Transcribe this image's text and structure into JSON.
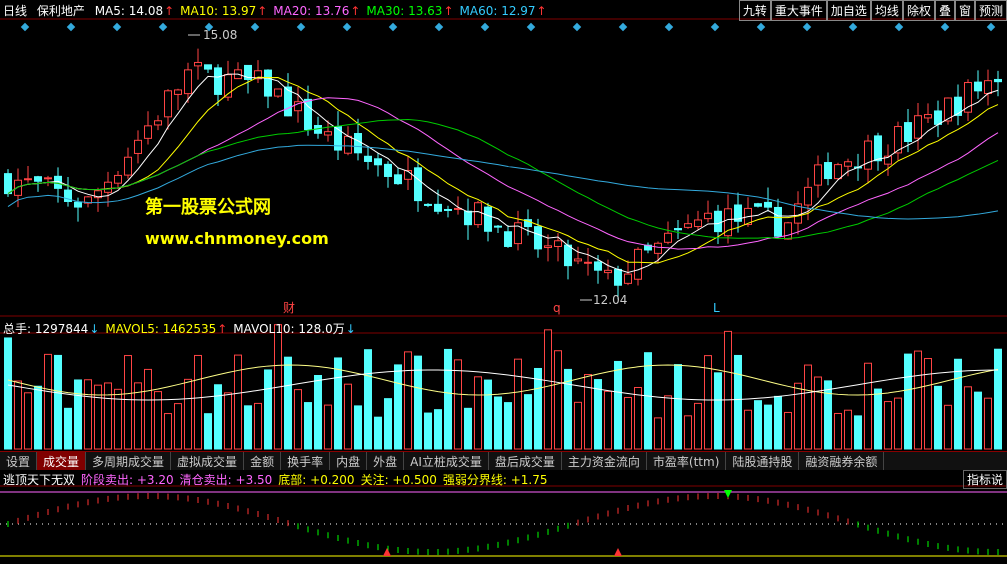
{
  "header": {
    "period": "日线",
    "stock": "保利地产",
    "indicators": [
      {
        "text": "MA5: 14.08",
        "arrow": "↑",
        "color": "#ffffff"
      },
      {
        "text": "MA10: 13.97",
        "arrow": "↑",
        "color": "#ffff00"
      },
      {
        "text": "MA20: 13.76",
        "arrow": "↑",
        "color": "#ff66ff"
      },
      {
        "text": "MA30: 13.63",
        "arrow": "↑",
        "color": "#00ff00"
      },
      {
        "text": "MA60: 12.97",
        "arrow": "↑",
        "color": "#33ccff"
      }
    ],
    "buttons": [
      "九转",
      "重大事件",
      "加自选",
      "均线",
      "除权",
      "叠",
      "窗",
      "预测"
    ]
  },
  "annotations": {
    "high": "15.08",
    "low": "12.04",
    "cai": "财",
    "q": "q",
    "l": "L"
  },
  "watermark": {
    "name": "第一股票公式网",
    "url": "www.chnmoney.com"
  },
  "volume_header": [
    {
      "text": "总手: 1297844",
      "arrow": "↓",
      "color": "#ffffff"
    },
    {
      "text": "MAVOL5: 1462535",
      "arrow": "↑",
      "color": "#ffff00"
    },
    {
      "text": "MAVOL10: 128.0万",
      "arrow": "↓",
      "color": "#ffffff"
    }
  ],
  "tabs": [
    "设置",
    "成交量",
    "多周期成交量",
    "虚拟成交量",
    "金额",
    "换手率",
    "内盘",
    "外盘",
    "AI立桩成交量",
    "盘后成交量",
    "主力资金流向",
    "市盈率(ttm)",
    "陆股通持股",
    "融资融券余额"
  ],
  "indicator_header": [
    {
      "text": "逃顶天下无双",
      "color": "#ffffff"
    },
    {
      "text": "阶段卖出: +3.20",
      "color": "#ff66ff"
    },
    {
      "text": "清仓卖出: +3.50",
      "color": "#ff66ff"
    },
    {
      "text": "底部: +0.200",
      "color": "#ffff00"
    },
    {
      "text": "关注: +0.500",
      "color": "#ffff00"
    },
    {
      "text": "强弱分界线: +1.75",
      "color": "#ffff00"
    }
  ],
  "indicator_button": "指标说"
}
